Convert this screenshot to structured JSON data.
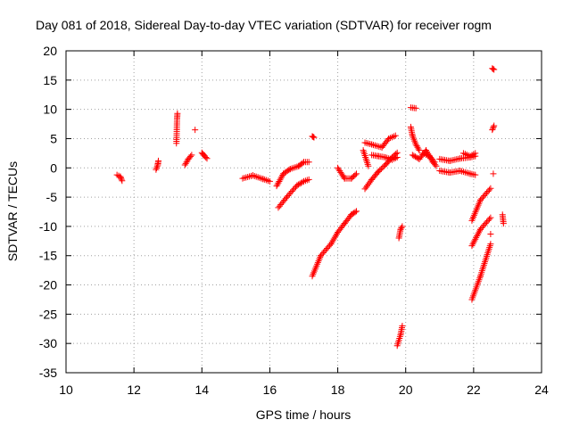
{
  "chart_data": {
    "type": "scatter",
    "title": "Day 081 of 2018, Sidereal Day-to-day VTEC variation (SDTVAR) for receiver rogm",
    "xlabel": "GPS time / hours",
    "ylabel": "SDTVAR / TECUs",
    "xlim": [
      10,
      24
    ],
    "ylim": [
      -35,
      20
    ],
    "xticks": [
      "10",
      "12",
      "14",
      "16",
      "18",
      "20",
      "22",
      "24"
    ],
    "yticks": [
      "-35",
      "-30",
      "-25",
      "-20",
      "-15",
      "-10",
      "-5",
      "0",
      "5",
      "10",
      "15",
      "20"
    ],
    "grid": true,
    "marker": "plus",
    "series_color": "#ff0000",
    "segments": [
      [
        [
          11.5,
          -1.2
        ],
        [
          11.6,
          -1.5
        ],
        [
          11.65,
          -2.2
        ]
      ],
      [
        [
          12.65,
          -0.3
        ],
        [
          12.7,
          0.5
        ],
        [
          12.72,
          1.2
        ]
      ],
      [
        [
          13.25,
          4.2
        ],
        [
          13.27,
          8.5
        ],
        [
          13.28,
          9.3
        ]
      ],
      [
        [
          13.5,
          0.5
        ],
        [
          13.6,
          1.5
        ],
        [
          13.7,
          2.2
        ]
      ],
      [
        [
          13.8,
          6.5
        ]
      ],
      [
        [
          14.0,
          2.6
        ],
        [
          14.05,
          2.2
        ],
        [
          14.15,
          1.6
        ]
      ],
      [
        [
          15.2,
          -1.8
        ],
        [
          15.5,
          -1.3
        ],
        [
          15.8,
          -1.9
        ],
        [
          16.0,
          -2.3
        ]
      ],
      [
        [
          16.2,
          -3.1
        ],
        [
          16.4,
          -1.0
        ],
        [
          16.6,
          -0.2
        ],
        [
          16.85,
          0.3
        ],
        [
          17.0,
          1.0
        ],
        [
          17.15,
          1.0
        ]
      ],
      [
        [
          16.25,
          -6.8
        ],
        [
          16.5,
          -5.0
        ],
        [
          16.8,
          -3.0
        ],
        [
          17.0,
          -2.3
        ],
        [
          17.15,
          -2.0
        ]
      ],
      [
        [
          17.25,
          5.4
        ],
        [
          17.3,
          5.2
        ]
      ],
      [
        [
          17.25,
          -18.5
        ],
        [
          17.5,
          -15.0
        ],
        [
          17.8,
          -13.0
        ],
        [
          18.0,
          -11.0
        ],
        [
          18.2,
          -9.5
        ],
        [
          18.4,
          -8.0
        ],
        [
          18.55,
          -7.4
        ]
      ],
      [
        [
          18.0,
          0.0
        ],
        [
          18.2,
          -1.8
        ],
        [
          18.4,
          -1.8
        ],
        [
          18.55,
          -1.0
        ]
      ],
      [
        [
          18.75,
          3.0
        ],
        [
          18.85,
          1.2
        ],
        [
          18.9,
          0.3
        ]
      ],
      [
        [
          18.8,
          4.3
        ],
        [
          19.0,
          4.0
        ],
        [
          19.3,
          3.5
        ],
        [
          19.5,
          5.0
        ],
        [
          19.7,
          5.5
        ]
      ],
      [
        [
          18.8,
          -3.6
        ],
        [
          19.0,
          -2.0
        ],
        [
          19.2,
          -0.6
        ],
        [
          19.4,
          0.5
        ],
        [
          19.6,
          1.8
        ],
        [
          19.75,
          2.6
        ]
      ],
      [
        [
          19.0,
          2.2
        ],
        [
          19.2,
          2.0
        ],
        [
          19.4,
          1.8
        ],
        [
          19.6,
          1.4
        ],
        [
          19.75,
          1.8
        ]
      ],
      [
        [
          19.8,
          -12.0
        ],
        [
          19.85,
          -10.5
        ],
        [
          19.9,
          -10.0
        ]
      ],
      [
        [
          19.75,
          -30.4
        ],
        [
          19.85,
          -28.5
        ],
        [
          19.9,
          -27.0
        ]
      ],
      [
        [
          20.15,
          10.3
        ],
        [
          20.3,
          10.2
        ]
      ],
      [
        [
          20.15,
          7.0
        ],
        [
          20.2,
          5.5
        ],
        [
          20.3,
          4.0
        ],
        [
          20.4,
          3.0
        ]
      ],
      [
        [
          20.2,
          2.2
        ],
        [
          20.4,
          1.5
        ],
        [
          20.6,
          3.0
        ],
        [
          20.8,
          1.0
        ],
        [
          20.9,
          0.3
        ]
      ],
      [
        [
          20.5,
          2.5
        ],
        [
          20.7,
          2.0
        ],
        [
          20.85,
          1.0
        ]
      ],
      [
        [
          21.0,
          -0.5
        ],
        [
          21.3,
          -0.8
        ],
        [
          21.6,
          -0.5
        ],
        [
          21.9,
          -1.0
        ],
        [
          22.05,
          -1.2
        ]
      ],
      [
        [
          21.0,
          1.5
        ],
        [
          21.3,
          1.2
        ],
        [
          21.6,
          1.6
        ],
        [
          21.9,
          1.8
        ],
        [
          22.05,
          2.0
        ]
      ],
      [
        [
          21.7,
          2.5
        ],
        [
          21.9,
          2.0
        ],
        [
          22.05,
          2.5
        ]
      ],
      [
        [
          21.95,
          -9.0
        ],
        [
          22.2,
          -5.5
        ],
        [
          22.5,
          -3.5
        ]
      ],
      [
        [
          21.95,
          -13.3
        ],
        [
          22.2,
          -10.5
        ],
        [
          22.5,
          -8.5
        ]
      ],
      [
        [
          21.95,
          -22.5
        ],
        [
          22.2,
          -18.5
        ],
        [
          22.5,
          -13.0
        ]
      ],
      [
        [
          22.55,
          6.5
        ],
        [
          22.6,
          7.2
        ]
      ],
      [
        [
          22.58,
          -1.0
        ]
      ],
      [
        [
          22.55,
          17.0
        ],
        [
          22.6,
          16.8
        ]
      ],
      [
        [
          22.5,
          -11.3
        ]
      ],
      [
        [
          22.85,
          -8.0
        ],
        [
          22.88,
          -9.5
        ]
      ]
    ]
  }
}
